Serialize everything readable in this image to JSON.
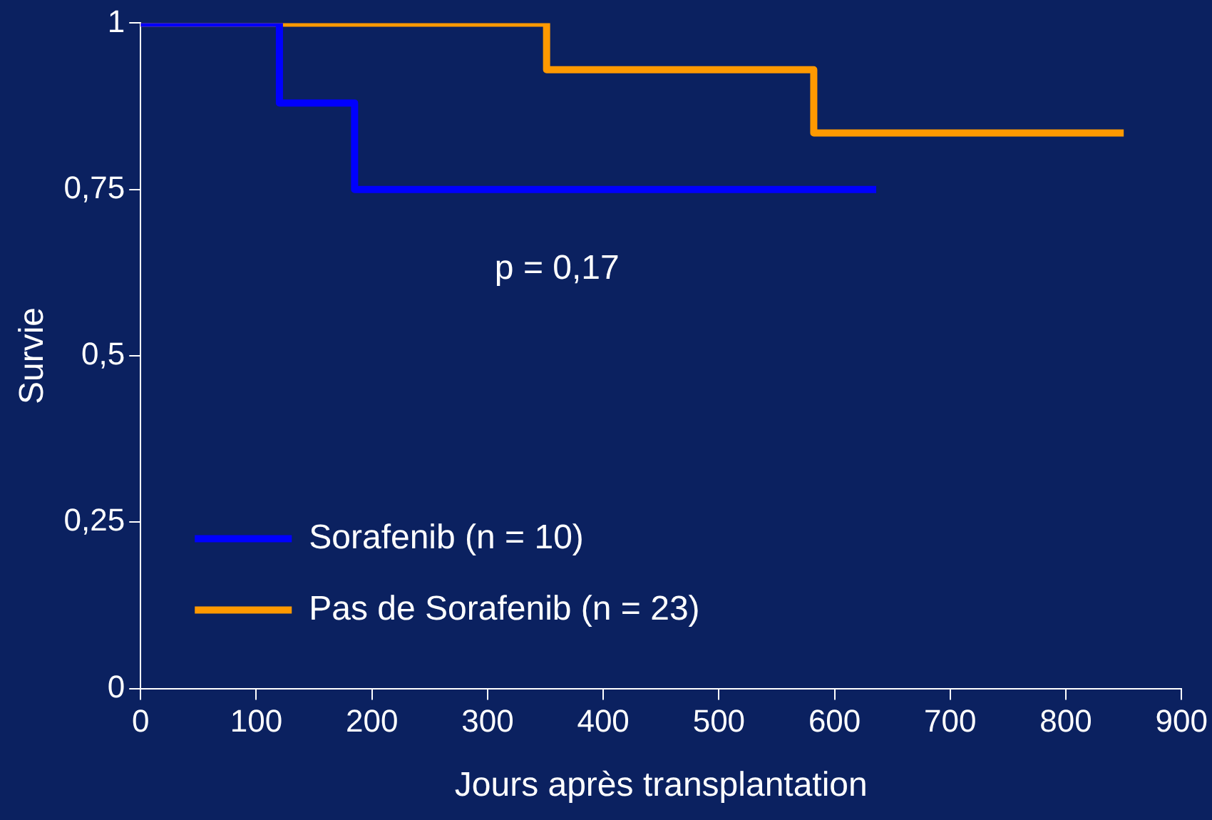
{
  "chart_data": {
    "type": "step",
    "xlabel": "Jours après transplantation",
    "ylabel": "Survie",
    "xlim": [
      0,
      900
    ],
    "xticks": [
      0,
      100,
      200,
      300,
      400,
      500,
      600,
      700,
      800,
      900
    ],
    "ylim": [
      0,
      1
    ],
    "yticks": [
      {
        "value": 0,
        "label": "0"
      },
      {
        "value": 0.25,
        "label": "0,25"
      },
      {
        "value": 0.5,
        "label": "0,5"
      },
      {
        "value": 0.75,
        "label": "0,75"
      },
      {
        "value": 1,
        "label": "1"
      }
    ],
    "series": [
      {
        "name": "Sorafenib (n = 10)",
        "color": "#0000ff",
        "x": [
          0,
          120,
          185,
          636
        ],
        "values": [
          1,
          0.88,
          0.75,
          0.75
        ]
      },
      {
        "name": "Pas de Sorafenib (n = 23)",
        "color": "#ff9900",
        "x": [
          0,
          351,
          582,
          850
        ],
        "values": [
          1,
          0.93,
          0.835,
          0.835
        ]
      }
    ],
    "annotations": [
      "p = 0,17"
    ],
    "legend": "bottom left",
    "grid": false,
    "marker": "none",
    "line_style": "solid"
  }
}
